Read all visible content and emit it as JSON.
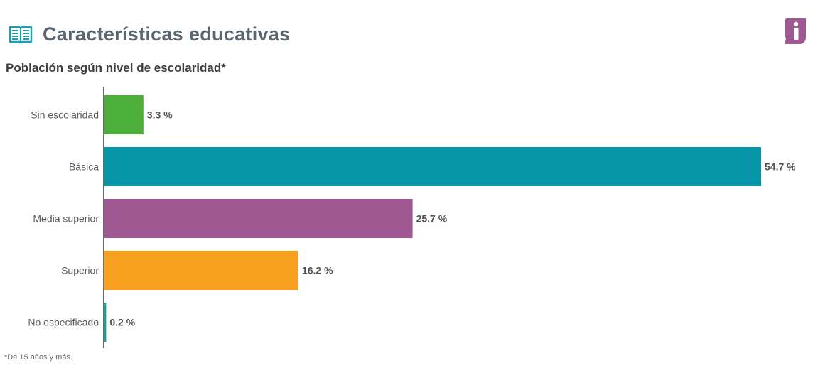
{
  "header": {
    "title": "Características educativas",
    "icon": "open-book-icon",
    "info_icon": "info-icon"
  },
  "chart_data": {
    "type": "bar",
    "orientation": "horizontal",
    "title": "Población según nivel de escolaridad*",
    "categories": [
      "Sin escolaridad",
      "Básica",
      "Media superior",
      "Superior",
      "No especificado"
    ],
    "values": [
      3.3,
      54.7,
      25.7,
      16.2,
      0.2
    ],
    "value_labels": [
      "3.3 %",
      "54.7 %",
      "25.7 %",
      "16.2 %",
      "0.2 %"
    ],
    "colors": [
      "#4caf3a",
      "#0795a8",
      "#a05892",
      "#f8a01f",
      "#16a59d"
    ],
    "unit": "%",
    "xlim": [
      0,
      54.7
    ],
    "grid": false,
    "legend": "none"
  },
  "footnote": "*De 15 años y más.",
  "colors": {
    "title": "#5b6670",
    "icon_teal": "#1a9fb0",
    "info_purple": "#a05892"
  }
}
